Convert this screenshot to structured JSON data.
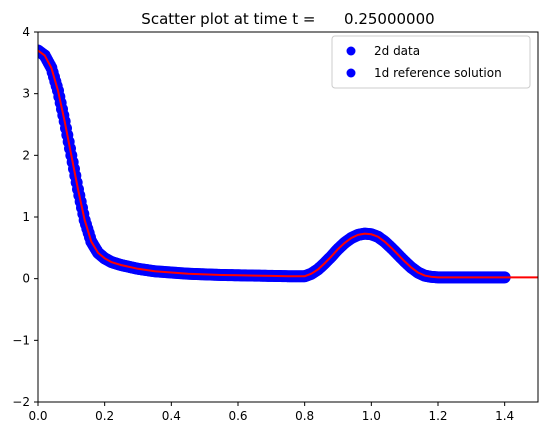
{
  "chart_data": {
    "type": "scatter",
    "title": "Scatter plot at time t =      0.25000000",
    "xlabel": "",
    "ylabel": "",
    "xlim": [
      0.0,
      1.5
    ],
    "ylim": [
      -2,
      4
    ],
    "x_ticks": [
      "0.0",
      "0.2",
      "0.4",
      "0.6",
      "0.8",
      "1.0",
      "1.2",
      "1.4"
    ],
    "y_ticks": [
      "4",
      "3",
      "2",
      "1",
      "0",
      "−1",
      "−2"
    ],
    "grid": false,
    "legend_position": "top-right",
    "series": [
      {
        "name": "2d data",
        "style": "scatter",
        "color": "#0000ff",
        "x": [
          0.0,
          0.02,
          0.04,
          0.06,
          0.08,
          0.1,
          0.12,
          0.14,
          0.16,
          0.18,
          0.2,
          0.22,
          0.25,
          0.3,
          0.35,
          0.4,
          0.45,
          0.5,
          0.55,
          0.6,
          0.65,
          0.7,
          0.75,
          0.8,
          0.82,
          0.84,
          0.86,
          0.88,
          0.9,
          0.92,
          0.94,
          0.96,
          0.98,
          1.0,
          1.02,
          1.04,
          1.06,
          1.08,
          1.1,
          1.12,
          1.14,
          1.16,
          1.18,
          1.2,
          1.25,
          1.3,
          1.35,
          1.4
        ],
        "y": [
          3.7,
          3.62,
          3.42,
          3.05,
          2.55,
          2.0,
          1.45,
          0.95,
          0.6,
          0.42,
          0.33,
          0.27,
          0.22,
          0.16,
          0.12,
          0.1,
          0.08,
          0.07,
          0.06,
          0.055,
          0.05,
          0.045,
          0.04,
          0.04,
          0.08,
          0.15,
          0.25,
          0.36,
          0.48,
          0.58,
          0.66,
          0.71,
          0.73,
          0.72,
          0.68,
          0.6,
          0.5,
          0.39,
          0.28,
          0.18,
          0.1,
          0.05,
          0.03,
          0.02,
          0.02,
          0.02,
          0.02,
          0.02
        ]
      },
      {
        "name": "1d reference solution",
        "style": "line",
        "color": "#ff0000",
        "x": [
          0.0,
          0.02,
          0.04,
          0.06,
          0.08,
          0.1,
          0.12,
          0.14,
          0.16,
          0.18,
          0.2,
          0.22,
          0.25,
          0.3,
          0.35,
          0.4,
          0.45,
          0.5,
          0.55,
          0.6,
          0.65,
          0.7,
          0.75,
          0.8,
          0.82,
          0.84,
          0.86,
          0.88,
          0.9,
          0.92,
          0.94,
          0.96,
          0.98,
          1.0,
          1.02,
          1.04,
          1.06,
          1.08,
          1.1,
          1.12,
          1.14,
          1.16,
          1.18,
          1.2,
          1.25,
          1.3,
          1.35,
          1.4,
          1.45,
          1.5
        ],
        "y": [
          3.7,
          3.62,
          3.42,
          3.05,
          2.55,
          2.0,
          1.45,
          0.95,
          0.6,
          0.42,
          0.33,
          0.27,
          0.22,
          0.16,
          0.12,
          0.1,
          0.08,
          0.07,
          0.06,
          0.055,
          0.05,
          0.045,
          0.04,
          0.04,
          0.08,
          0.15,
          0.25,
          0.36,
          0.48,
          0.58,
          0.66,
          0.71,
          0.73,
          0.72,
          0.68,
          0.6,
          0.5,
          0.39,
          0.28,
          0.18,
          0.1,
          0.05,
          0.03,
          0.02,
          0.02,
          0.02,
          0.02,
          0.02,
          0.02,
          0.02
        ]
      }
    ]
  }
}
